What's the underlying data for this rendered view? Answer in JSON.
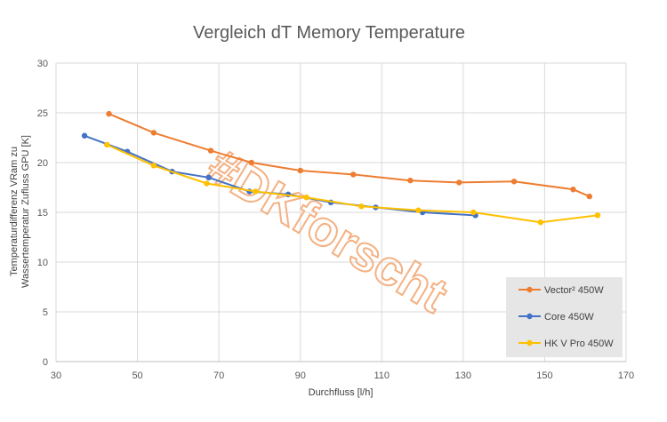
{
  "chart_data": {
    "type": "line",
    "title": "Vergleich dT Memory Temperature",
    "xlabel": "Durchfluss [l/h]",
    "ylabel_lines": [
      "Temperaturdifferenz VRam zu",
      "Wassertemperatur Zufluss GPU  [K]"
    ],
    "xlim": [
      30,
      170
    ],
    "ylim": [
      0,
      30
    ],
    "x_ticks": [
      30,
      50,
      70,
      90,
      110,
      130,
      150,
      170
    ],
    "y_ticks": [
      0,
      5,
      10,
      15,
      20,
      25,
      30
    ],
    "grid": true,
    "legend_position": "bottom-right",
    "watermark": {
      "text": "#DKforscht",
      "color": "#F4B183"
    },
    "series": [
      {
        "name": "Vector² 450W",
        "color": "#ED7D31",
        "x": [
          43,
          54,
          68,
          78,
          90,
          103,
          117,
          129,
          142.5,
          157,
          161
        ],
        "y": [
          24.9,
          23,
          21.2,
          20,
          19.2,
          18.8,
          18.2,
          18,
          18.1,
          17.3,
          16.6
        ]
      },
      {
        "name": "Core 450W",
        "color": "#4472C4",
        "x": [
          37,
          47.5,
          58.5,
          67.5,
          77.5,
          87,
          97.5,
          108.5,
          120,
          133
        ],
        "y": [
          22.7,
          21.1,
          19.1,
          18.5,
          17.1,
          16.8,
          16,
          15.5,
          15,
          14.7
        ]
      },
      {
        "name": "HK V Pro 450W",
        "color": "#FFC000",
        "x": [
          42.5,
          54,
          67,
          79,
          91.5,
          105,
          119,
          132.5,
          149,
          163
        ],
        "y": [
          21.8,
          19.7,
          17.9,
          17.1,
          16.5,
          15.6,
          15.2,
          15,
          14,
          14.7
        ]
      }
    ]
  }
}
